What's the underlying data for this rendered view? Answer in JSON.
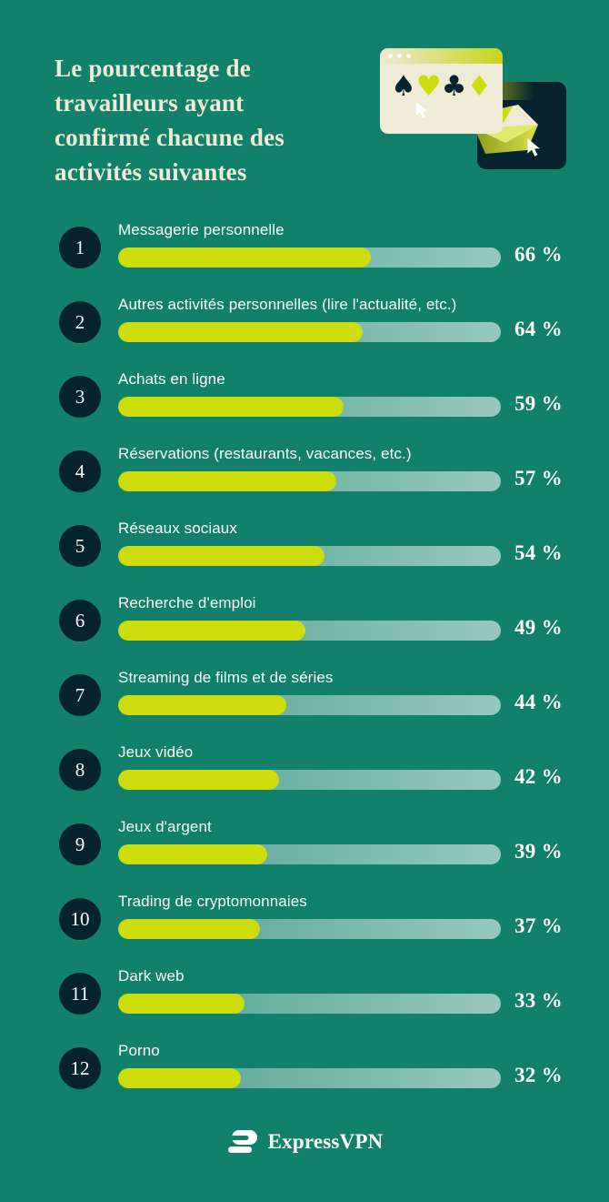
{
  "theme": {
    "background": "#12816B",
    "navy": "#05222E",
    "lime": "#CDDD0C",
    "cream": "#F0EBD6",
    "track_start": "rgba(255,255,255,0.26)",
    "track_end": "rgba(255,255,255,0.56)"
  },
  "header": {
    "title": "Le pourcentage de\ntravailleurs ayant\nconfirmé chacune des\nactivités suivantes"
  },
  "illustration": {
    "window_dots": 3,
    "suits": [
      {
        "name": "spade-icon",
        "glyph": "♠",
        "tone": "navy"
      },
      {
        "name": "heart-icon",
        "glyph": "♥",
        "tone": "lime"
      },
      {
        "name": "club-icon",
        "glyph": "♣",
        "tone": "navy"
      },
      {
        "name": "diamond-icon",
        "glyph": "♦",
        "tone": "lime"
      }
    ]
  },
  "chart_data": {
    "type": "bar",
    "orientation": "horizontal",
    "xlim": [
      0,
      100
    ],
    "value_suffix": " %",
    "grid": false,
    "legend": false,
    "ranks": [
      1,
      2,
      3,
      4,
      5,
      6,
      7,
      8,
      9,
      10,
      11,
      12
    ],
    "categories": [
      "Messagerie personnelle",
      "Autres activités personnelles (lire l'actualité, etc.)",
      "Achats en ligne",
      "Réservations (restaurants, vacances, etc.)",
      "Réseaux sociaux",
      "Recherche d'emploi",
      "Streaming de films et de séries",
      "Jeux vidéo",
      "Jeux d'argent",
      "Trading de cryptomonnaies",
      "Dark web",
      "Porno"
    ],
    "values": [
      66,
      64,
      59,
      57,
      54,
      49,
      44,
      42,
      39,
      37,
      33,
      32
    ],
    "value_labels": [
      "66 %",
      "64 %",
      "59 %",
      "57 %",
      "54 %",
      "49 %",
      "44 %",
      "42 %",
      "39 %",
      "37 %",
      "33 %",
      "32 %"
    ]
  },
  "footer": {
    "brand": "ExpressVPN"
  }
}
